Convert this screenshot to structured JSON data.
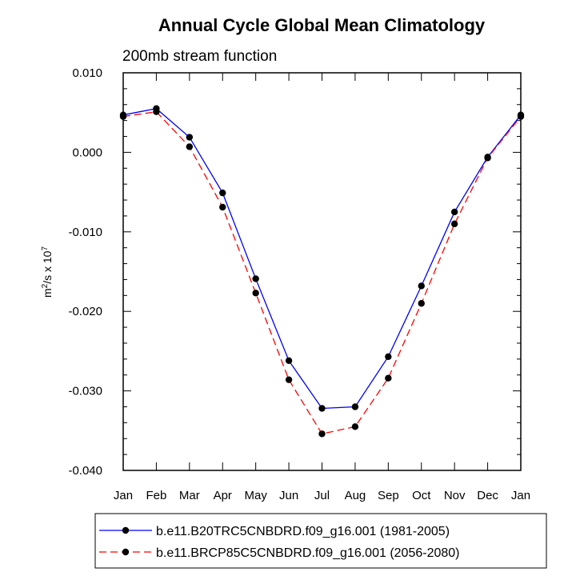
{
  "chart_data": {
    "type": "line",
    "title": "Annual Cycle Global Mean Climatology",
    "subtitle": "200mb stream function",
    "ylabel_base": "m",
    "ylabel_exp1": "2",
    "ylabel_mid": "/s x 10",
    "ylabel_exp2": "7",
    "categories": [
      "Jan",
      "Feb",
      "Mar",
      "Apr",
      "May",
      "Jun",
      "Jul",
      "Aug",
      "Sep",
      "Oct",
      "Nov",
      "Dec",
      "Jan"
    ],
    "ylim": [
      -0.04,
      0.01
    ],
    "yticks": [
      0.01,
      0.0,
      -0.01,
      -0.02,
      -0.03,
      -0.04
    ],
    "ytick_labels": [
      "0.010",
      "0.000",
      "-0.010",
      "-0.020",
      "-0.030",
      "-0.040"
    ],
    "series": [
      {
        "name": "b.e11.B20TRC5CNBDRD.f09_g16.001 (1981-2005)",
        "color": "#0000ff",
        "dash": "solid",
        "values": [
          0.0047,
          0.0055,
          0.0019,
          -0.0051,
          -0.0159,
          -0.0262,
          -0.0322,
          -0.032,
          -0.0257,
          -0.0168,
          -0.0075,
          -0.0006,
          0.0047
        ]
      },
      {
        "name": "b.e11.BRCP85C5CNBDRD.f09_g16.001 (2056-2080)",
        "color": "#ff0000",
        "dash": "dashed",
        "values": [
          0.0045,
          0.0051,
          0.0007,
          -0.0069,
          -0.0177,
          -0.0286,
          -0.0354,
          -0.0345,
          -0.0284,
          -0.019,
          -0.009,
          -0.0007,
          0.0045
        ]
      }
    ],
    "marker_color": "#000000",
    "legend_position": "bottom"
  }
}
